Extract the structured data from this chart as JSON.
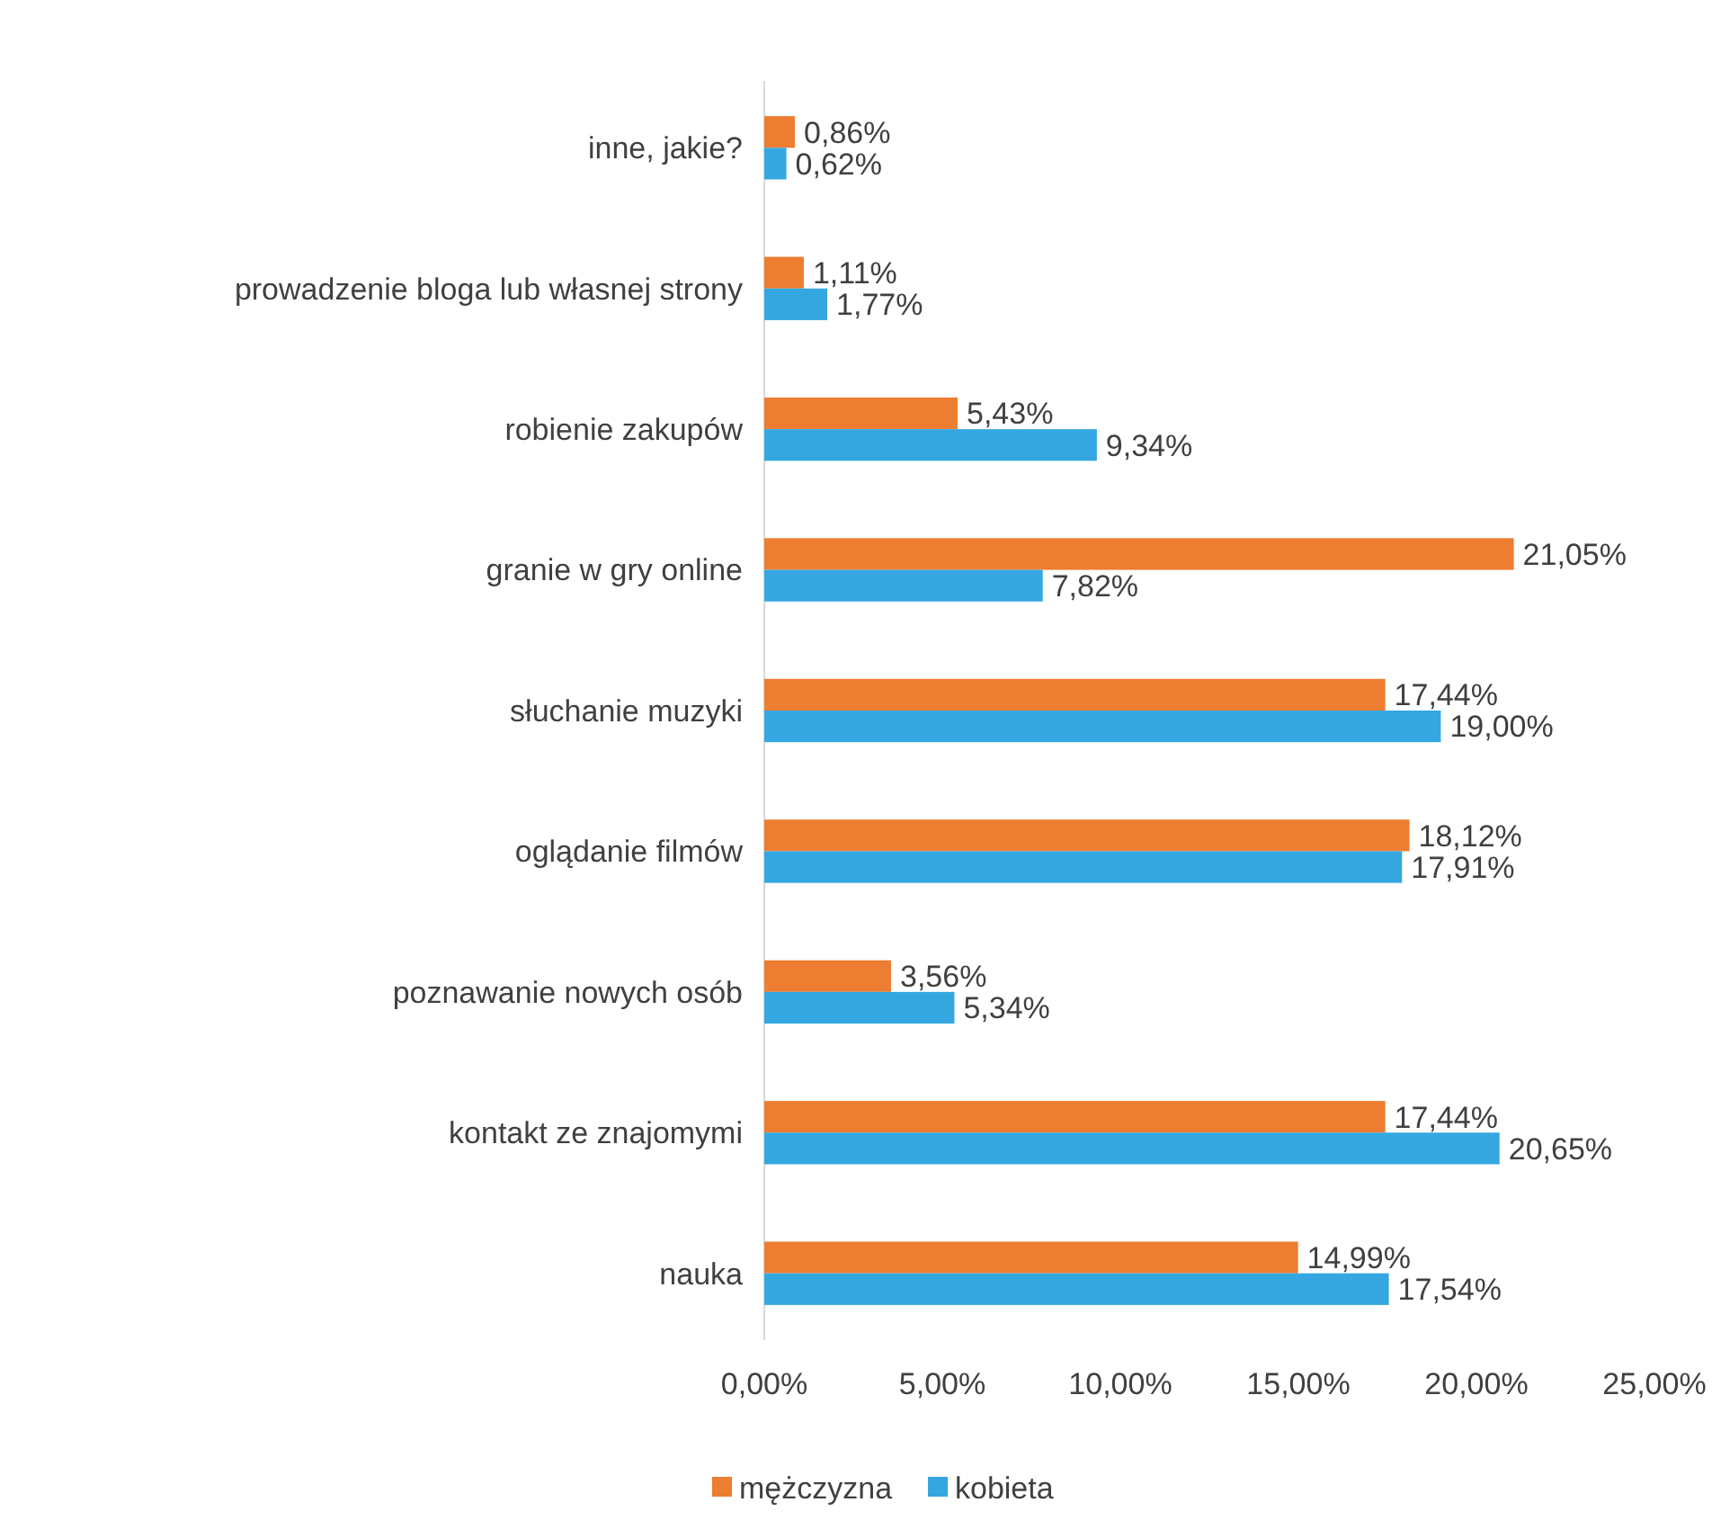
{
  "chart_data": {
    "type": "bar",
    "orientation": "horizontal",
    "categories": [
      "inne, jakie?",
      "prowadzenie bloga lub własnej strony",
      "robienie zakupów",
      "granie w gry online",
      "słuchanie muzyki",
      "oglądanie filmów",
      "poznawanie nowych osób",
      "kontakt ze znajomymi",
      "nauka"
    ],
    "series": [
      {
        "name": "mężczyzna",
        "color": "#ed7d31",
        "values": [
          0.86,
          1.11,
          5.43,
          21.05,
          17.44,
          18.12,
          3.56,
          17.44,
          14.99
        ],
        "value_labels": [
          "0,86%",
          "1,11%",
          "5,43%",
          "21,05%",
          "17,44%",
          "18,12%",
          "3,56%",
          "17,44%",
          "14,99%"
        ]
      },
      {
        "name": "kobieta",
        "color": "#35a7e0",
        "values": [
          0.62,
          1.77,
          9.34,
          7.82,
          19.0,
          17.91,
          5.34,
          20.65,
          17.54
        ],
        "value_labels": [
          "0,62%",
          "1,77%",
          "9,34%",
          "7,82%",
          "19,00%",
          "17,91%",
          "5,34%",
          "20,65%",
          "17,54%"
        ]
      }
    ],
    "xlim": [
      0,
      25
    ],
    "xticks": [
      {
        "value": 0,
        "label": "0,00%"
      },
      {
        "value": 5,
        "label": "5,00%"
      },
      {
        "value": 10,
        "label": "10,00%"
      },
      {
        "value": 15,
        "label": "15,00%"
      },
      {
        "value": 20,
        "label": "20,00%"
      },
      {
        "value": 25,
        "label": "25,00%"
      }
    ],
    "legend": "bottom"
  }
}
